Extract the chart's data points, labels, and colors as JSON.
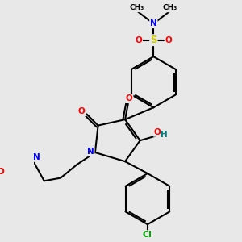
{
  "background_color": "#e8e8e8",
  "atom_colors": {
    "C": "#000000",
    "N": "#0000ff",
    "O": "#ff0000",
    "S": "#cccc00",
    "Cl": "#00aa00",
    "H": "#008080"
  },
  "bond_color": "#000000",
  "bond_width": 1.5,
  "fig_w": 3.0,
  "fig_h": 3.0,
  "dpi": 100
}
